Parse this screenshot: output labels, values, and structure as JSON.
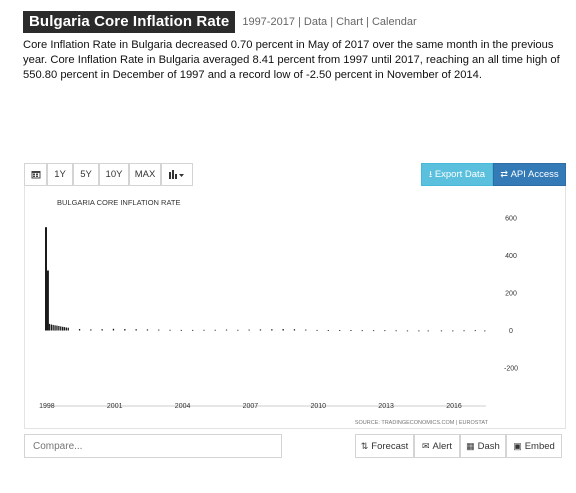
{
  "header": {
    "title": "Bulgaria Core Inflation Rate",
    "links": "1997-2017 | Data | Chart | Calendar"
  },
  "description": "Core Inflation Rate in Bulgaria decreased 0.70 percent in May of 2017 over the same month in the previous year. Core Inflation Rate in Bulgaria averaged 8.41 percent from 1997 until 2017, reaching an all time high of 550.80 percent in December of 1997 and a record low of -2.50 percent in November of 2014.",
  "toolbar": {
    "calendar_icon": "calendar-icon",
    "range_1y": "1Y",
    "range_5y": "5Y",
    "range_10y": "10Y",
    "range_max": "MAX",
    "chart_type_icon": "bar-chart-icon",
    "export_label": "Export Data",
    "export_icon": "download-icon",
    "api_label": "API Access",
    "api_icon": "swap-icon"
  },
  "bottom": {
    "compare_placeholder": "Compare...",
    "forecast_label": "Forecast",
    "alert_label": "Alert",
    "dash_label": "Dash",
    "embed_label": "Embed"
  },
  "chart_data": {
    "type": "bar",
    "title": "BULGARIA CORE INFLATION RATE",
    "source": "SOURCE: TRADINGECONOMICS.COM | EUROSTAT",
    "x_tick_labels": [
      "1998",
      "2001",
      "2004",
      "2007",
      "2010",
      "2013",
      "2016"
    ],
    "y_tick_labels": [
      "600",
      "400",
      "200",
      "0",
      "-200"
    ],
    "ylim": [
      -200,
      600
    ],
    "grid": false,
    "colors": {
      "bar": "#1a1a1a",
      "axis_text": "#333333"
    },
    "series": [
      {
        "x": [
          "1997-12",
          "1998-01",
          "1998-02",
          "1998-03",
          "1998-04",
          "1998-05",
          "1998-06",
          "1998-07",
          "1998-08",
          "1998-09",
          "1998-10",
          "1998-11",
          "1998-12",
          "1999-06",
          "1999-12",
          "2000-06",
          "2000-12",
          "2001-06",
          "2001-12",
          "2002-06",
          "2002-12",
          "2003-06",
          "2003-12",
          "2004-06",
          "2004-12",
          "2005-06",
          "2005-12",
          "2006-06",
          "2006-12",
          "2007-06",
          "2007-12",
          "2008-06",
          "2008-12",
          "2009-06",
          "2009-12",
          "2010-06",
          "2010-12",
          "2011-06",
          "2011-12",
          "2012-06",
          "2012-12",
          "2013-06",
          "2013-12",
          "2014-06",
          "2014-11",
          "2015-06",
          "2015-12",
          "2016-06",
          "2016-12",
          "2017-05"
        ],
        "values": [
          550.8,
          320,
          35,
          32,
          30,
          28,
          26,
          24,
          22,
          20,
          18,
          16,
          15,
          8,
          6,
          7,
          9,
          8,
          7,
          6,
          5,
          4,
          3,
          3,
          4,
          4,
          5,
          4,
          5,
          6,
          7,
          8,
          7,
          5,
          3,
          2,
          2,
          2,
          1,
          1,
          1,
          0.5,
          0,
          -1,
          -2.5,
          -1.5,
          -1,
          0.5,
          1,
          -0.7
        ]
      }
    ]
  }
}
